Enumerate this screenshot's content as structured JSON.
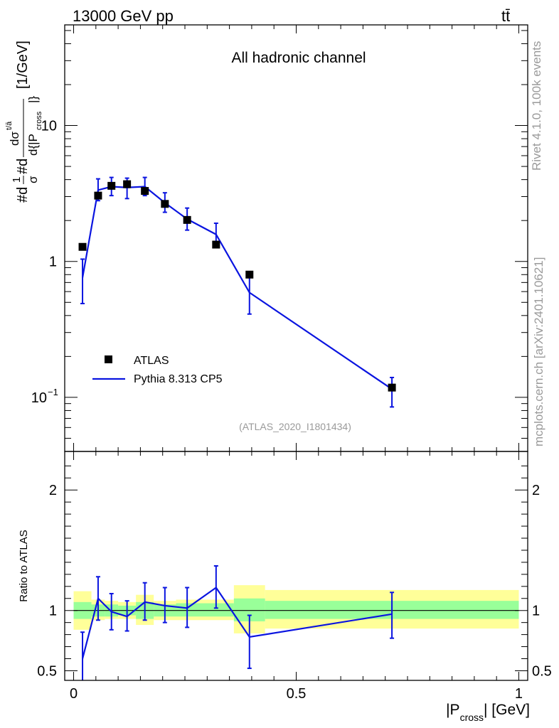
{
  "header": {
    "energy_label": "13000 GeV pp",
    "process_label": "tt̄"
  },
  "side_labels": {
    "rivet": "Rivet 4.1.0,  100k events",
    "mcplots": "mcplots.cern.ch [arXiv:2401.10621]"
  },
  "colors": {
    "mc_line": "#0a14e0",
    "data_marker": "#000000",
    "band_inner": "#99ff99",
    "band_outer": "#ffff99",
    "watermark": "#9a9a9a"
  },
  "chart_data": [
    {
      "type": "scatter",
      "panel": "main",
      "title": "All hadronic channel",
      "analysis_tag": "(ATLAS_2020_I1801434)",
      "xlabel": "|P_cross| [GeV]",
      "ylabel": "#d 1/σ #d dσ^{t/ā}/d{|P_cross|} [1/GeV]",
      "ylabel_parts": {
        "main": "#d",
        "frac1_num": "1",
        "frac1_den": "σ",
        "mid": "#d",
        "frac2_num": "dσ",
        "frac2_sup": "t/ā",
        "frac2_den": "d{|P",
        "frac2_sub": "cross",
        "frac2_close": "|}",
        "unit": "[1/GeV]"
      },
      "yscale": "log",
      "xlim": [
        -0.02,
        1.02
      ],
      "ylim": [
        0.04,
        55
      ],
      "yticks": [
        {
          "value": 0.1,
          "base": "10",
          "exp": "−1"
        },
        {
          "value": 1,
          "label": "1"
        },
        {
          "value": 10,
          "label": "10"
        }
      ],
      "legend": [
        {
          "label": "ATLAS",
          "kind": "marker"
        },
        {
          "label": "Pythia 8.313 CP5",
          "kind": "line"
        }
      ],
      "legend_position": "lower-left",
      "series": [
        {
          "name": "ATLAS",
          "x": [
            0.02,
            0.055,
            0.085,
            0.12,
            0.16,
            0.205,
            0.255,
            0.32,
            0.395,
            0.715
          ],
          "y": [
            1.28,
            3.05,
            3.6,
            3.7,
            3.3,
            2.65,
            2.02,
            1.33,
            0.8,
            0.118
          ]
        },
        {
          "name": "Pythia 8.313 CP5",
          "x": [
            0.02,
            0.055,
            0.085,
            0.12,
            0.16,
            0.205,
            0.255,
            0.32,
            0.395,
            0.715
          ],
          "y": [
            0.76,
            3.35,
            3.55,
            3.5,
            3.55,
            2.7,
            2.05,
            1.58,
            0.59,
            0.115
          ],
          "yerr_low": [
            0.27,
            0.55,
            0.5,
            0.6,
            0.5,
            0.4,
            0.35,
            0.3,
            0.18,
            0.03
          ],
          "yerr_high": [
            0.28,
            0.7,
            0.6,
            0.6,
            0.6,
            0.5,
            0.42,
            0.33,
            0.18,
            0.025
          ]
        }
      ]
    },
    {
      "type": "line",
      "panel": "ratio",
      "ylabel": "Ratio to ATLAS",
      "xlabel": "|P_cross| [GeV]",
      "xlim": [
        -0.02,
        1.02
      ],
      "ylim": [
        0.42,
        2.32
      ],
      "yticks": [
        {
          "value": 0.5,
          "label": "0.5"
        },
        {
          "value": 1,
          "label": "1"
        },
        {
          "value": 2,
          "label": "2"
        }
      ],
      "xticks": [
        {
          "value": 0,
          "label": "0"
        },
        {
          "value": 0.5,
          "label": "0.5"
        },
        {
          "value": 1,
          "label": "1"
        }
      ],
      "reference_line": 1,
      "bands": [
        {
          "x0": 0.0,
          "x1": 0.04,
          "inner": [
            0.93,
            1.07
          ],
          "outer": [
            0.84,
            1.16
          ]
        },
        {
          "x0": 0.04,
          "x1": 0.07,
          "inner": [
            0.95,
            1.05
          ],
          "outer": [
            0.92,
            1.09
          ]
        },
        {
          "x0": 0.07,
          "x1": 0.1,
          "inner": [
            0.95,
            1.05
          ],
          "outer": [
            0.93,
            1.08
          ]
        },
        {
          "x0": 0.1,
          "x1": 0.14,
          "inner": [
            0.96,
            1.04
          ],
          "outer": [
            0.93,
            1.07
          ]
        },
        {
          "x0": 0.14,
          "x1": 0.18,
          "inner": [
            0.93,
            1.07
          ],
          "outer": [
            0.88,
            1.13
          ]
        },
        {
          "x0": 0.18,
          "x1": 0.23,
          "inner": [
            0.95,
            1.05
          ],
          "outer": [
            0.92,
            1.08
          ]
        },
        {
          "x0": 0.23,
          "x1": 0.36,
          "inner": [
            0.95,
            1.06
          ],
          "outer": [
            0.92,
            1.09
          ]
        },
        {
          "x0": 0.36,
          "x1": 0.43,
          "inner": [
            0.91,
            1.1
          ],
          "outer": [
            0.81,
            1.21
          ]
        },
        {
          "x0": 0.43,
          "x1": 1.0,
          "inner": [
            0.93,
            1.08
          ],
          "outer": [
            0.85,
            1.17
          ]
        }
      ],
      "series": [
        {
          "name": "Pythia 8.313 CP5 / ATLAS",
          "x": [
            0.02,
            0.055,
            0.085,
            0.12,
            0.16,
            0.205,
            0.255,
            0.32,
            0.395,
            0.715
          ],
          "y": [
            0.6,
            1.1,
            0.99,
            0.95,
            1.07,
            1.04,
            1.02,
            1.19,
            0.78,
            0.97
          ],
          "yerr_low": [
            0.25,
            0.18,
            0.15,
            0.12,
            0.15,
            0.14,
            0.16,
            0.17,
            0.26,
            0.2
          ],
          "yerr_high": [
            0.22,
            0.18,
            0.15,
            0.13,
            0.16,
            0.15,
            0.17,
            0.18,
            0.18,
            0.18
          ]
        }
      ]
    }
  ]
}
